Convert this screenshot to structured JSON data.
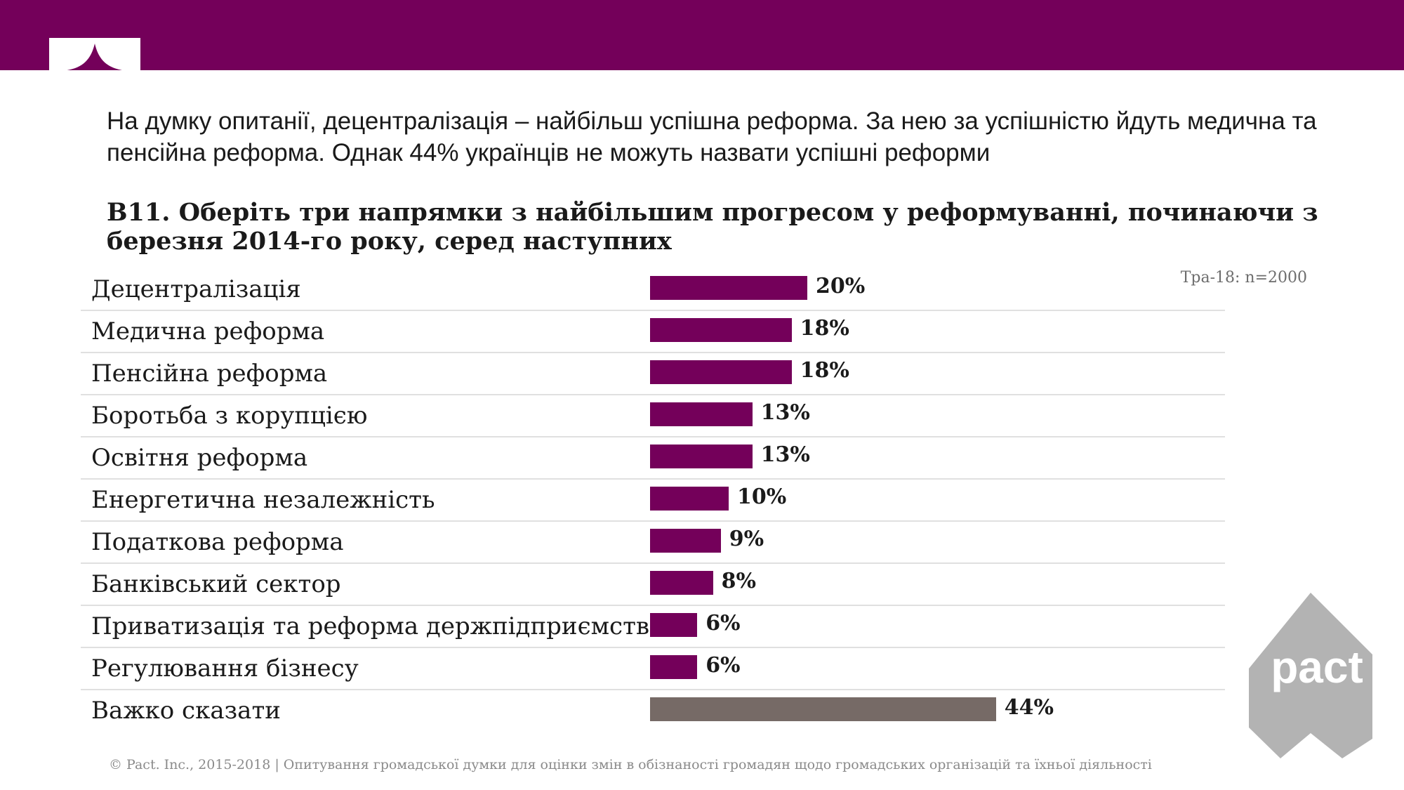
{
  "headline": "На думку опитанії, децентралізація – найбільш успішна реформа. За нею за успішністю йдуть медична та пенсійна реформа. Однак 44% українців не можуть назвати успішні реформи",
  "sample_note": "Тра-18: n=2000",
  "footer": "© Pact. Inc., 2015-2018 | Опитування громадської думки для оцінки змін в обізнаності громадян щодо громадських організацій та їхньої діяльності",
  "logo": {
    "text": "pact",
    "icon": "pact-logo"
  },
  "colors": {
    "brand": "#74005a",
    "bar": "#74005a",
    "neutral_bar": "#766a66",
    "logo": "#b3b3b3"
  },
  "chart_data": {
    "type": "bar",
    "orientation": "horizontal",
    "title": "В11. Оберіть три напрямки з найбільшим прогресом у реформуванні, починаючи з березня 2014-го року, серед наступних",
    "categories": [
      "Децентралізація",
      "Медична реформа",
      "Пенсійна реформа",
      "Боротьба з корупцією",
      "Освітня реформа",
      "Енергетична незалежність",
      "Податкова реформа",
      "Банківський сектор",
      "Приватизація та реформа держпідприємств",
      "Регулювання бізнесу",
      "Важко сказати"
    ],
    "values": [
      20,
      18,
      18,
      13,
      13,
      10,
      9,
      8,
      6,
      6,
      44
    ],
    "labels": [
      "20%",
      "18%",
      "18%",
      "13%",
      "13%",
      "10%",
      "9%",
      "8%",
      "6%",
      "6%",
      "44%"
    ],
    "unit": "%",
    "xlim": [
      0,
      100
    ],
    "highlight_last_as_neutral": true
  }
}
